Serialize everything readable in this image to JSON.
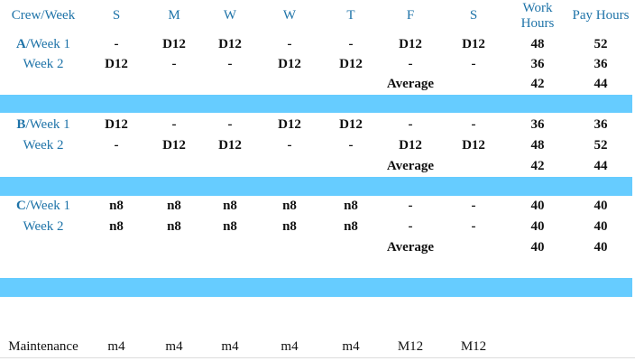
{
  "headers": {
    "crew_week": "Crew/Week",
    "days": [
      "S",
      "M",
      "W",
      "W",
      "T",
      "F",
      "S"
    ],
    "work_hours_line1": "Work",
    "work_hours_line2": "Hours",
    "pay_hours": "Pay Hours"
  },
  "crews": [
    {
      "letter": "A",
      "week1_suffix": "/Week 1",
      "week2_label": "Week 2",
      "week1": [
        "-",
        "D12",
        "D12",
        "-",
        "-",
        "D12",
        "D12"
      ],
      "week1_work": "48",
      "week1_pay": "52",
      "week2": [
        "D12",
        "-",
        "-",
        "D12",
        "D12",
        "-",
        "-"
      ],
      "week2_work": "36",
      "week2_pay": "36",
      "average_label": "Average",
      "avg_work": "42",
      "avg_pay": "44"
    },
    {
      "letter": "B",
      "week1_suffix": "/Week 1",
      "week2_label": "Week 2",
      "week1": [
        "D12",
        "-",
        "-",
        "D12",
        "D12",
        "-",
        "-"
      ],
      "week1_work": "36",
      "week1_pay": "36",
      "week2": [
        "-",
        "D12",
        "D12",
        "-",
        "-",
        "D12",
        "D12"
      ],
      "week2_work": "48",
      "week2_pay": "52",
      "average_label": "Average",
      "avg_work": "42",
      "avg_pay": "44"
    },
    {
      "letter": "C",
      "week1_suffix": "/Week 1",
      "week2_label": "Week 2",
      "week1": [
        "n8",
        "n8",
        "n8",
        "n8",
        "n8",
        "-",
        "-"
      ],
      "week1_work": "40",
      "week1_pay": "40",
      "week2": [
        "n8",
        "n8",
        "n8",
        "n8",
        "n8",
        "-",
        "-"
      ],
      "week2_work": "40",
      "week2_pay": "40",
      "average_label": "Average",
      "avg_work": "40",
      "avg_pay": "40"
    }
  ],
  "maintenance": {
    "label": "Maintenance",
    "days": [
      "m4",
      "m4",
      "m4",
      "m4",
      "m4",
      "M12",
      "M12"
    ]
  },
  "colors": {
    "band": "#66ccff",
    "header_text": "#1e73a8"
  }
}
